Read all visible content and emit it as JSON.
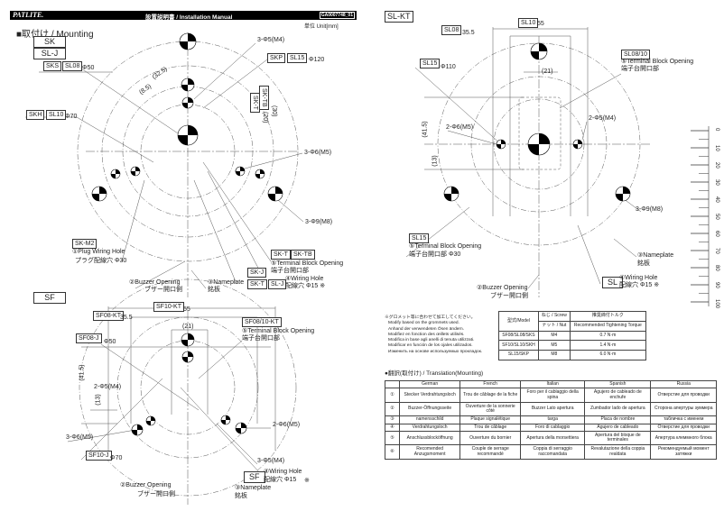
{
  "header": {
    "brand": "PATLITE.",
    "title": "設置説明書 / Installation Manual",
    "doc_no": "GA0007748_01",
    "unit": "単位 Unit[mm]"
  },
  "sk": {
    "section_title": "■取付け / Mounting",
    "model_sk": "SK",
    "model_slj": "SL-J",
    "sks": "SKS",
    "sl08": "SL08",
    "phi50": "Φ50",
    "holes_m4": "3-Φ5(M4)",
    "skp": "SKP",
    "sl15": "SL15",
    "phi120": "Φ120",
    "dim_325": "(32.5)",
    "dim_85": "(8.5)",
    "skt_rot": "SK-T",
    "sktb_rot": "SK-TB",
    "dim_20": "(20)",
    "dim_30": "(30)",
    "skh": "SKH",
    "sl10": "SL10",
    "phi70": "Φ70",
    "holes_m5": "3-Φ6(M5)",
    "holes_m8": "3-Φ9(M8)",
    "skm2": "SK-M2",
    "plug_hole": "①Plug Wiring Hole",
    "plug_hole_jp": "プラグ配線穴 Φ30",
    "skt": "SK-T",
    "sktb": "SK-TB",
    "terminal": "⑤Terminal Block Opening",
    "terminal_jp": "端子台開口部",
    "skj": "SK-J",
    "skt2": "SK-T",
    "slj": "SL-J",
    "wiring": "④Wiring Hole",
    "wiring_jp": "配線穴 Φ15 ※",
    "buzzer": "②Buzzer Opening",
    "buzzer_jp": "ブザー開口側",
    "nameplate": "③Nameplate",
    "nameplate_jp": "銘板"
  },
  "sf": {
    "model": "SF",
    "sf10kt": "SF10-KT",
    "d55": "55",
    "sf08kt": "SF08-KT",
    "d355": "35.5",
    "d21": "(21)",
    "sf0810kt": "SF08/10-KT",
    "terminal": "⑤Terminal Block Opening",
    "terminal_jp": "端子台開口部",
    "sf08j": "SF08-J",
    "phi50": "Φ50",
    "d415": "(41.5)",
    "d13": "(13)",
    "holes_m4a": "2-Φ5(M4)",
    "holes_m5a": "2-Φ6(M5)",
    "holes_m5b": "3-Φ6(M5)",
    "sf10j": "SF10-J",
    "phi70": "Φ70",
    "holes_m4b": "3-Φ5(M4)",
    "sf": "SF",
    "wiring": "④Wiring Hole",
    "wiring_jp": "配線穴 Φ15",
    "mark": "※",
    "buzzer": "②Buzzer Opening",
    "buzzer_jp": "ブザー開口側",
    "nameplate": "③Nameplate",
    "nameplate_jp": "銘板"
  },
  "slkt": {
    "model": "SL-KT",
    "sl10": "SL10",
    "d55": "55",
    "sl08": "SL08",
    "d355": "35.5",
    "sl15": "SL15",
    "phi110": "Φ110",
    "d21": "(21)",
    "sl0810": "SL08/10",
    "terminal": "⑤Terminal Block Opening",
    "terminal_jp": "端子台開口部",
    "d415": "(41.5)",
    "d13": "(13)",
    "holes_m5": "2-Φ6(M5)",
    "holes_m4": "2-Φ5(M4)",
    "holes_m8": "3-Φ9(M8)",
    "sl15b": "SL15",
    "terminal2": "⑤Terminal Block Opening",
    "terminal2_jp": "端子台開口部 Φ30",
    "nameplate": "③Nameplate",
    "nameplate_jp": "銘板",
    "sl": "SL",
    "wiring": "④Wiring Hole",
    "wiring_jp": "配線穴 Φ15 ※",
    "buzzer": "②Buzzer Opening",
    "buzzer_jp": "ブザー開口側"
  },
  "ruler": {
    "labels": [
      "0",
      "10",
      "20",
      "30",
      "40",
      "50",
      "60",
      "70",
      "80",
      "90",
      "100"
    ]
  },
  "notes": [
    "※グロメット等に合わせて加工してください。",
    "Modify based on the grommets used.",
    "Anhand der verwendeten Ösen ändern.",
    "Modifiez en fonction des œillets utilisés.",
    "Modifica in base agli anelli di tenuta utilizzati.",
    "Modificar en función de los ojales utilizados.",
    "Изменить на основе используемых прокладок."
  ],
  "torque": {
    "h_model": "型式/Model",
    "h_screw": "ねじ / Screw",
    "h_nut": "ナット / Nut",
    "h_torque_jp": "推奨締付トルク",
    "h_torque": "Recommended Tightening Torque",
    "rows": [
      [
        "SF08/SL08/SKS",
        "M4",
        "0.7 N·m"
      ],
      [
        "SF10/SL10/SKH",
        "M5",
        "1.4 N·m"
      ],
      [
        "SL15/SKP",
        "M8",
        "6.0 N·m"
      ]
    ]
  },
  "translation": {
    "title": "●翻訳(取付け) / Translation(Mounting)",
    "headers": [
      "",
      "German",
      "French",
      "Italian",
      "Spanish",
      "Russia"
    ],
    "rows": [
      [
        "①",
        "Stecker Verdrahtungsloch",
        "Trou de câblage de la fiche",
        "Foro per il cablaggio della spina",
        "Agujero de cableado de enchufe",
        "Отверстие для проводки"
      ],
      [
        "②",
        "Buzzer-Öffnungsseite",
        "Ouverture de la sonnerie côté",
        "Buzzer Lato apertura",
        "Zumbador lado de apertura",
        "Сторона апертуры зуммера"
      ],
      [
        "③",
        "namensschild",
        "Plaque signalétique",
        "targa",
        "Placa de nombre",
        "табличка с именем"
      ],
      [
        "④",
        "Verdrahtungsloch",
        "Trou de câblage",
        "Foro di cablaggio",
        "Agujero de cableado",
        "Отверстие для проводки"
      ],
      [
        "⑤",
        "Anschlussblocköffnung",
        "Ouverture du bornier",
        "Apertura della morsettiera",
        "Apertura del bloque de terminales",
        "Апертура клеммного блока"
      ],
      [
        "⑥",
        "Recomended Anzugsmoment",
        "Couple de serrage recommandé",
        "Coppia di serraggio raccomandata",
        "Revalutazione della coppia realdata",
        "Рекомендуемый момент затяжки"
      ]
    ]
  }
}
